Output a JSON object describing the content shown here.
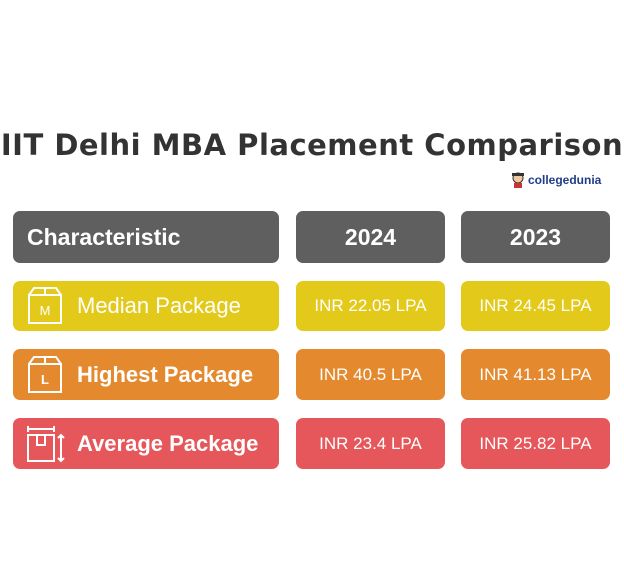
{
  "title": "IIT Delhi MBA Placement Comparison",
  "brand": "collegedunia",
  "table": {
    "header": [
      "Characteristic",
      "2024",
      "2023"
    ],
    "rows": [
      {
        "icon": "M",
        "label": "Median Package",
        "values": [
          "INR 22.05 LPA",
          "INR 24.45 LPA"
        ]
      },
      {
        "icon": "L",
        "label": "Highest Package",
        "values": [
          "INR 40.5 LPA",
          "INR 41.13 LPA"
        ]
      },
      {
        "label": "Average Package",
        "values": [
          "INR 23.4 LPA",
          "INR 25.82 LPA"
        ]
      }
    ]
  }
}
